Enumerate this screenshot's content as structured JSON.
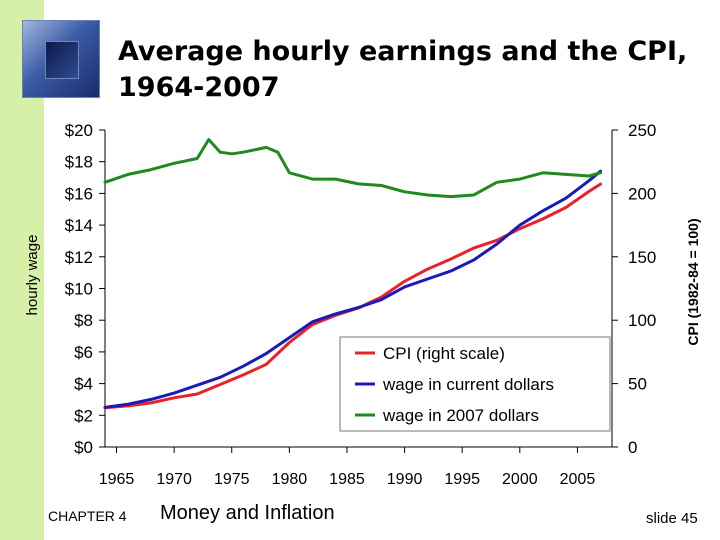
{
  "slide": {
    "title_line1": "Average hourly earnings and the CPI,",
    "title_line2": "1964-2007",
    "chapter_label": "CHAPTER 4",
    "chapter_title": "Money and Inflation",
    "slide_number": "slide 45"
  },
  "chart_data": {
    "type": "line",
    "x_tick_labels": [
      "1965",
      "1970",
      "1975",
      "1980",
      "1985",
      "1990",
      "1995",
      "2000",
      "2005"
    ],
    "xlim": [
      1964,
      2008
    ],
    "y_left": {
      "label": "hourly wage",
      "ylim": [
        0,
        20
      ],
      "tick_labels": [
        "$0",
        "$2",
        "$4",
        "$6",
        "$8",
        "$10",
        "$12",
        "$14",
        "$16",
        "$18",
        "$20"
      ]
    },
    "y_right": {
      "label": "CPI   (1982-84 = 100)",
      "ylim": [
        0,
        250
      ],
      "tick_labels": [
        "0",
        "50",
        "100",
        "150",
        "200",
        "250"
      ]
    },
    "legend_position": "bottom-right",
    "series": [
      {
        "name": "CPI (right scale)",
        "axis": "right",
        "color": "#e8212a",
        "x": [
          1964,
          1966,
          1968,
          1970,
          1972,
          1974,
          1976,
          1978,
          1980,
          1982,
          1984,
          1986,
          1988,
          1990,
          1992,
          1994,
          1996,
          1998,
          2000,
          2002,
          2004,
          2006,
          2007
        ],
        "y": [
          31,
          32.4,
          34.8,
          38.8,
          41.8,
          49.3,
          56.9,
          65.2,
          82.4,
          96.5,
          103.9,
          109.6,
          118.3,
          130.7,
          140.3,
          148.2,
          156.9,
          163.0,
          172.2,
          179.9,
          188.9,
          201.6,
          207.3
        ]
      },
      {
        "name": "wage in current dollars",
        "axis": "left",
        "color": "#1a1ab8",
        "x": [
          1964,
          1966,
          1968,
          1970,
          1972,
          1974,
          1976,
          1978,
          1980,
          1982,
          1984,
          1986,
          1988,
          1990,
          1992,
          1994,
          1996,
          1998,
          2000,
          2002,
          2004,
          2006,
          2007
        ],
        "y": [
          2.5,
          2.7,
          3.0,
          3.4,
          3.9,
          4.4,
          5.1,
          5.9,
          6.9,
          7.9,
          8.4,
          8.8,
          9.3,
          10.1,
          10.6,
          11.1,
          11.8,
          12.8,
          14.0,
          14.9,
          15.7,
          16.8,
          17.4
        ]
      },
      {
        "name": "wage in 2007 dollars",
        "axis": "left",
        "color": "#1f8a1f",
        "x": [
          1964,
          1966,
          1968,
          1970,
          1972,
          1973,
          1974,
          1975,
          1976,
          1978,
          1979,
          1980,
          1982,
          1984,
          1986,
          1988,
          1990,
          1992,
          1994,
          1996,
          1998,
          2000,
          2002,
          2004,
          2006,
          2007
        ],
        "y": [
          16.7,
          17.2,
          17.5,
          17.9,
          18.2,
          19.4,
          18.6,
          18.5,
          18.6,
          18.9,
          18.6,
          17.3,
          16.9,
          16.9,
          16.6,
          16.5,
          16.1,
          15.9,
          15.8,
          15.9,
          16.7,
          16.9,
          17.3,
          17.2,
          17.1,
          17.3
        ]
      }
    ]
  }
}
